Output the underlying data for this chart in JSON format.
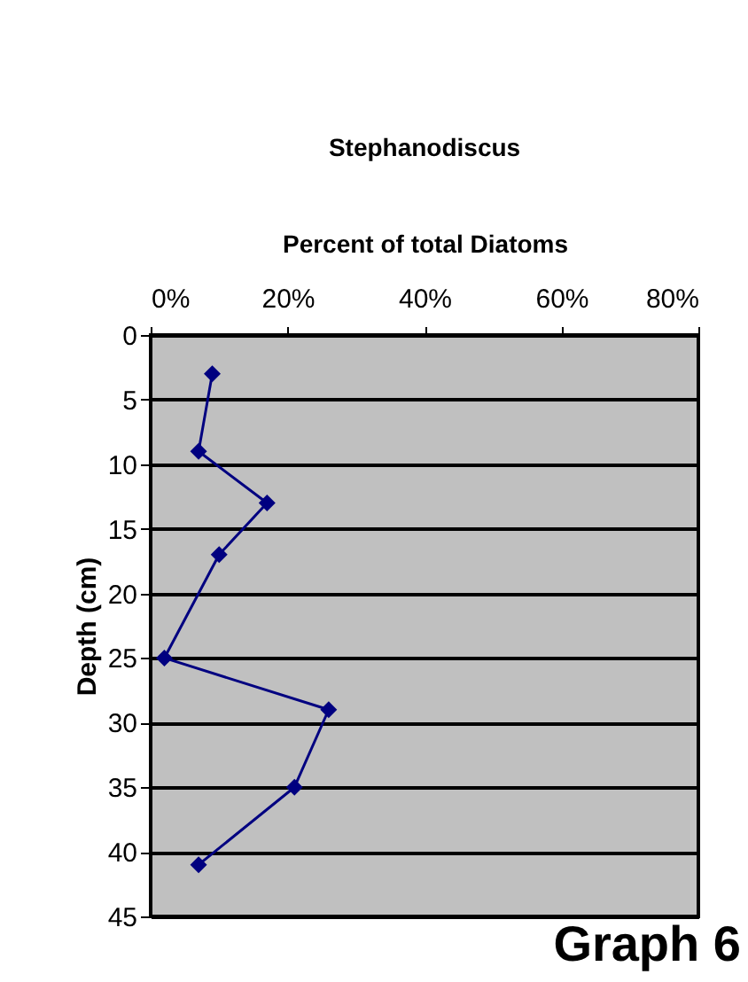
{
  "chart_data": {
    "type": "line",
    "title": "Stephanodiscus",
    "xlabel": "Percent of total Diatoms",
    "ylabel": "Depth (cm)",
    "annotations": [
      "Graph 6"
    ],
    "x": [
      9,
      7,
      17,
      10,
      2,
      26,
      21,
      7
    ],
    "series": [
      {
        "color": "#000080",
        "values": [
          3,
          9,
          13,
          17,
          25,
          29,
          35,
          41
        ]
      }
    ],
    "xlim": [
      0,
      80
    ],
    "xticks": [
      {
        "value": 0,
        "label": "0%"
      },
      {
        "value": 20,
        "label": "20%"
      },
      {
        "value": 40,
        "label": "40%"
      },
      {
        "value": 60,
        "label": "60%"
      },
      {
        "value": 80,
        "label": "80%"
      }
    ],
    "ylim": [
      45,
      0
    ],
    "yticks": [
      0,
      5,
      10,
      15,
      20,
      25,
      30,
      35,
      40,
      45
    ],
    "grid": "y",
    "marker": "diamond",
    "line_style": "solid"
  }
}
